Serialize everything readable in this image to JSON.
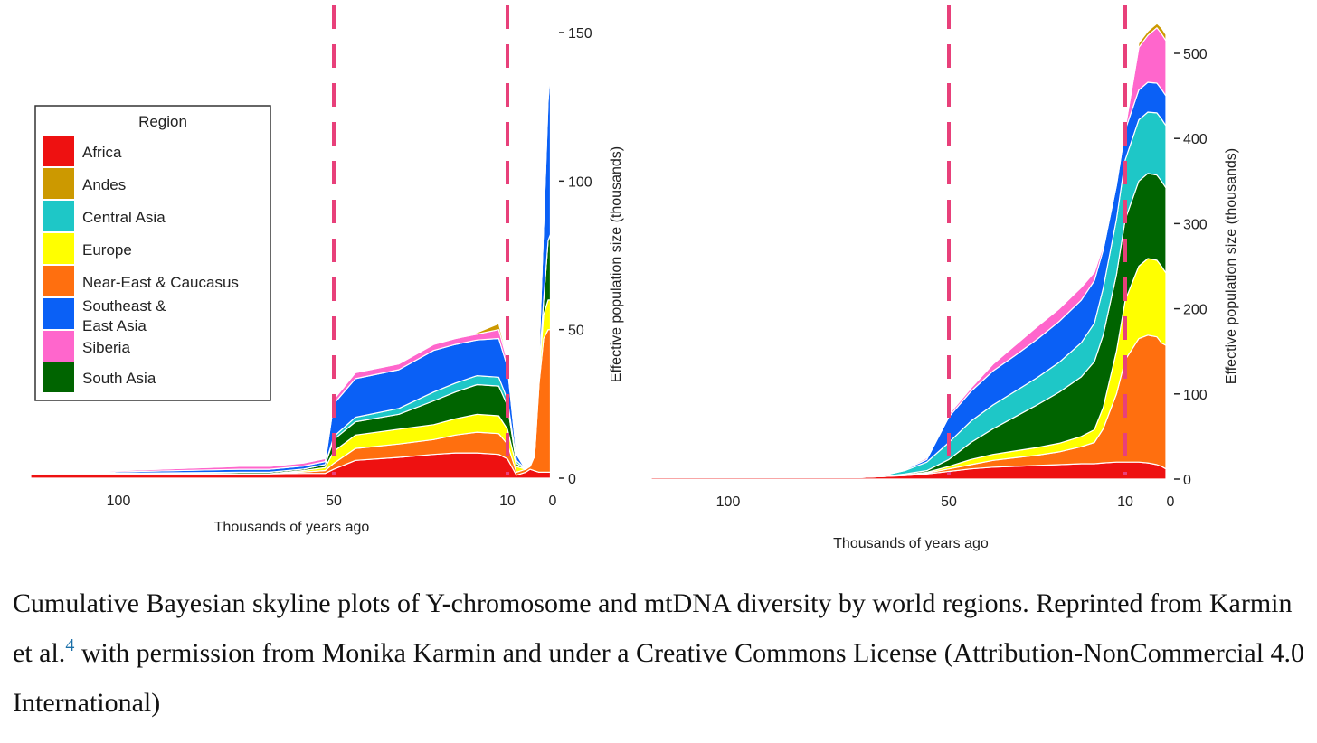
{
  "chart_data": [
    {
      "type": "area",
      "stacked": true,
      "x_reversed": true,
      "xlabel": "Thousands of years ago",
      "ylabel": "Effective population size (thousands)",
      "xlim": [
        130,
        0
      ],
      "ylim": [
        0,
        150
      ],
      "xticks": [
        100,
        50,
        10,
        0
      ],
      "yticks": [
        0,
        50,
        100,
        150
      ],
      "yaxis_side": "right",
      "vlines": [
        50,
        10
      ],
      "legend": {
        "title": "Region",
        "position": "left"
      },
      "x": [
        130,
        72,
        65,
        57,
        52,
        50,
        45,
        35,
        27,
        22,
        17,
        12,
        10,
        8,
        6,
        5,
        4,
        3,
        2,
        1,
        0.5
      ],
      "series": [
        {
          "name": "Africa",
          "color": "#ee1111",
          "values": [
            1.5,
            1.5,
            1.5,
            1.6,
            1.6,
            3,
            6,
            7,
            8,
            8.5,
            8.5,
            8,
            6.5,
            1,
            2,
            3,
            2.5,
            2,
            2,
            2,
            2
          ]
        },
        {
          "name": "Near-East & Caucasus",
          "color": "#ff6f0f",
          "values": [
            0,
            0,
            0,
            0.5,
            1,
            2,
            4,
            4.5,
            5,
            6,
            7,
            7,
            5,
            1,
            1,
            1,
            5,
            30,
            45,
            48,
            48
          ]
        },
        {
          "name": "Europe",
          "color": "#ffff00",
          "values": [
            0,
            0,
            0,
            0.5,
            1,
            4,
            4.5,
            5,
            5,
            5.5,
            6,
            6,
            5,
            2,
            0,
            0,
            0,
            3,
            8,
            10,
            10
          ]
        },
        {
          "name": "South Asia",
          "color": "#006400",
          "values": [
            0,
            0.5,
            0.5,
            0.5,
            1,
            4,
            4.5,
            5,
            8,
            9,
            10,
            10,
            8,
            1,
            0,
            0,
            0,
            2,
            5,
            20,
            22
          ]
        },
        {
          "name": "Central Asia",
          "color": "#1ec7c7",
          "values": [
            0,
            0,
            0,
            0,
            0,
            1,
            1.5,
            2,
            3,
            3,
            3,
            3,
            2,
            1,
            0,
            0,
            0,
            0,
            0,
            0,
            0
          ]
        },
        {
          "name": "Southeast & East Asia",
          "color": "#0a60f6",
          "values": [
            0,
            1,
            1,
            1,
            1,
            11,
            13,
            13,
            14,
            13,
            12,
            13,
            11,
            2,
            0,
            0,
            0,
            5,
            25,
            47,
            55
          ]
        },
        {
          "name": "Siberia",
          "color": "#ff66cc",
          "values": [
            0,
            1,
            1,
            1,
            1,
            1.5,
            2,
            2,
            2,
            2,
            2,
            3,
            2,
            0.5,
            0,
            0,
            0,
            0,
            0,
            3,
            4
          ]
        },
        {
          "name": "Andes",
          "color": "#cc9900",
          "values": [
            0,
            0,
            0,
            0,
            0,
            0,
            0,
            0,
            0,
            0,
            0.5,
            2,
            1,
            0,
            0,
            0,
            0,
            0,
            0,
            0,
            0
          ]
        }
      ]
    },
    {
      "type": "area",
      "stacked": true,
      "x_reversed": true,
      "xlabel": "Thousands of years ago",
      "ylabel": "Effective population size (thousands)",
      "xlim": [
        130,
        0
      ],
      "ylim": [
        0,
        520
      ],
      "xticks": [
        100,
        50,
        10,
        0
      ],
      "yticks": [
        0,
        100,
        200,
        300,
        400,
        500
      ],
      "yaxis_side": "right",
      "vlines": [
        50,
        10
      ],
      "x": [
        130,
        80,
        70,
        65,
        60,
        55,
        50,
        45,
        40,
        35,
        30,
        25,
        20,
        17,
        15,
        12,
        10,
        7,
        5,
        3,
        2,
        1
      ],
      "series": [
        {
          "name": "Africa",
          "color": "#ee1111",
          "values": [
            2,
            2,
            2,
            3,
            4,
            6,
            9,
            12,
            14,
            15,
            16,
            17,
            18,
            18,
            19,
            20,
            20,
            20,
            19,
            17,
            15,
            12
          ]
        },
        {
          "name": "Near-East & Caucasus",
          "color": "#ff6f0f",
          "values": [
            0,
            0,
            0,
            0,
            0.5,
            1,
            3,
            5,
            8,
            10,
            12,
            15,
            20,
            25,
            40,
            80,
            120,
            145,
            150,
            150,
            145,
            145
          ]
        },
        {
          "name": "Europe",
          "color": "#ffff00",
          "values": [
            0,
            0,
            0,
            0,
            0.5,
            1,
            3,
            6,
            7,
            8,
            9,
            10,
            12,
            15,
            25,
            50,
            70,
            85,
            90,
            90,
            90,
            85
          ]
        },
        {
          "name": "South Asia",
          "color": "#006400",
          "values": [
            0,
            0,
            0,
            0,
            1,
            2,
            8,
            20,
            30,
            40,
            50,
            60,
            70,
            80,
            85,
            90,
            95,
            100,
            100,
            100,
            100,
            100
          ]
        },
        {
          "name": "Central Asia",
          "color": "#1ec7c7",
          "values": [
            0,
            0,
            0,
            1,
            4,
            10,
            20,
            25,
            28,
            30,
            32,
            35,
            40,
            45,
            55,
            65,
            70,
            72,
            72,
            73,
            73,
            73
          ]
        },
        {
          "name": "Southeast & East Asia",
          "color": "#0a60f6",
          "values": [
            0,
            0,
            0,
            0,
            1,
            3,
            30,
            35,
            40,
            42,
            45,
            48,
            50,
            50,
            45,
            40,
            35,
            35,
            35,
            35,
            35,
            35
          ]
        },
        {
          "name": "Siberia",
          "color": "#ff66cc",
          "values": [
            0,
            0,
            0,
            0,
            1,
            2,
            3,
            4,
            8,
            12,
            15,
            15,
            15,
            10,
            5,
            3,
            2,
            50,
            55,
            65,
            65,
            65
          ]
        },
        {
          "name": "Andes",
          "color": "#cc9900",
          "values": [
            0,
            0,
            0,
            0,
            0,
            0,
            0,
            0,
            0,
            0,
            0,
            0,
            0,
            0,
            0,
            0,
            0,
            5,
            5,
            5,
            7,
            7
          ]
        }
      ]
    }
  ],
  "legend_items": [
    {
      "name": "Africa",
      "color": "#ee1111"
    },
    {
      "name": "Andes",
      "color": "#cc9900"
    },
    {
      "name": "Central Asia",
      "color": "#1ec7c7"
    },
    {
      "name": "Europe",
      "color": "#ffff00"
    },
    {
      "name": "Near-East & Caucasus",
      "color": "#ff6f0f"
    },
    {
      "name": "Southeast & East Asia",
      "color": "#0a60f6"
    },
    {
      "name": "Siberia",
      "color": "#ff66cc"
    },
    {
      "name": "South Asia",
      "color": "#006400"
    }
  ],
  "caption": {
    "text_before_ref": "Cumulative Bayesian skyline plots of Y-chromosome and mtDNA diversity by world regions. Reprinted from Karmin et al.",
    "ref": "4",
    "text_after_ref": " with permission from Monika Karmin and under a Creative Commons License (Attribution-NonCommercial 4.0 International)"
  },
  "colors": {
    "vline": "#e8407a"
  }
}
